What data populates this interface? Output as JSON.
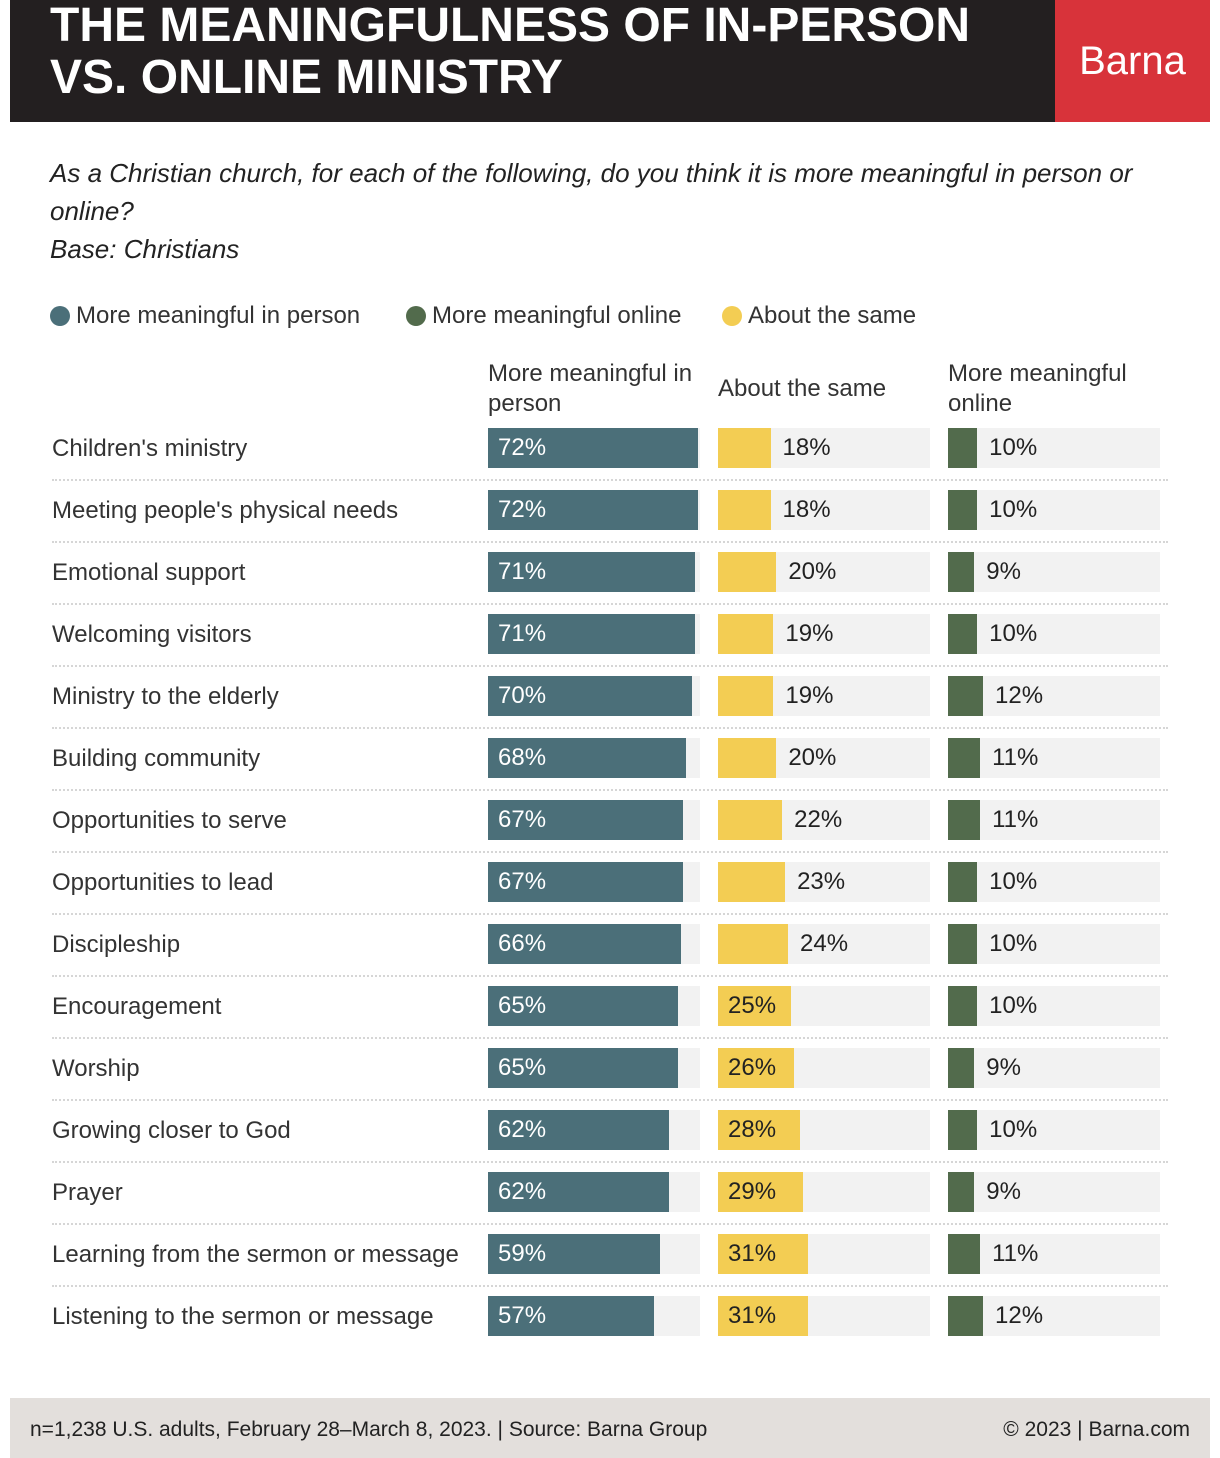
{
  "chart_data": {
    "type": "bar",
    "title": "THE MEANINGFULNESS OF IN-PERSON VS. ONLINE MINISTRY",
    "brand": "Barna",
    "subtitle": "As a Christian church, for each of the following, do you think it is more meaningful in person or online?",
    "base": "Base: Christians",
    "categories": [
      "Children's ministry",
      "Meeting people's physical needs",
      "Emotional support",
      "Welcoming visitors",
      "Ministry to the elderly",
      "Building community",
      "Opportunities to serve",
      "Opportunities to lead",
      "Discipleship",
      "Encouragement",
      "Worship",
      "Growing closer to God",
      "Prayer",
      "Learning from the sermon or message",
      "Listening to the sermon or message"
    ],
    "xlim": [
      0,
      72
    ],
    "series": [
      {
        "name": "More meaningful in person",
        "header": "More meaningful in person",
        "color": "#4b6f79",
        "values": [
          72,
          72,
          71,
          71,
          70,
          68,
          67,
          67,
          66,
          65,
          65,
          62,
          62,
          59,
          57
        ],
        "value_labels": [
          "72%",
          "72%",
          "71%",
          "71%",
          "70%",
          "68%",
          "67%",
          "67%",
          "66%",
          "65%",
          "65%",
          "62%",
          "62%",
          "59%",
          "57%"
        ]
      },
      {
        "name": "About the same",
        "header": "About the same",
        "color": "#f3cd53",
        "values": [
          18,
          18,
          20,
          19,
          19,
          20,
          22,
          23,
          24,
          25,
          26,
          28,
          29,
          31,
          31
        ],
        "value_labels": [
          "18%",
          "18%",
          "20%",
          "19%",
          "19%",
          "20%",
          "22%",
          "23%",
          "24%",
          "25%",
          "26%",
          "28%",
          "29%",
          "31%",
          "31%"
        ]
      },
      {
        "name": "More meaningful online",
        "header": "More meaningful online",
        "color": "#526b4c",
        "values": [
          10,
          10,
          9,
          10,
          12,
          11,
          11,
          10,
          10,
          10,
          9,
          10,
          9,
          11,
          12
        ],
        "value_labels": [
          "10%",
          "10%",
          "9%",
          "10%",
          "12%",
          "11%",
          "11%",
          "10%",
          "10%",
          "10%",
          "9%",
          "10%",
          "9%",
          "11%",
          "12%"
        ]
      }
    ],
    "footer_left": "n=1,238 U.S. adults, February 28–March 8, 2023. | Source: Barna Group",
    "footer_right": "© 2023 | Barna.com"
  }
}
